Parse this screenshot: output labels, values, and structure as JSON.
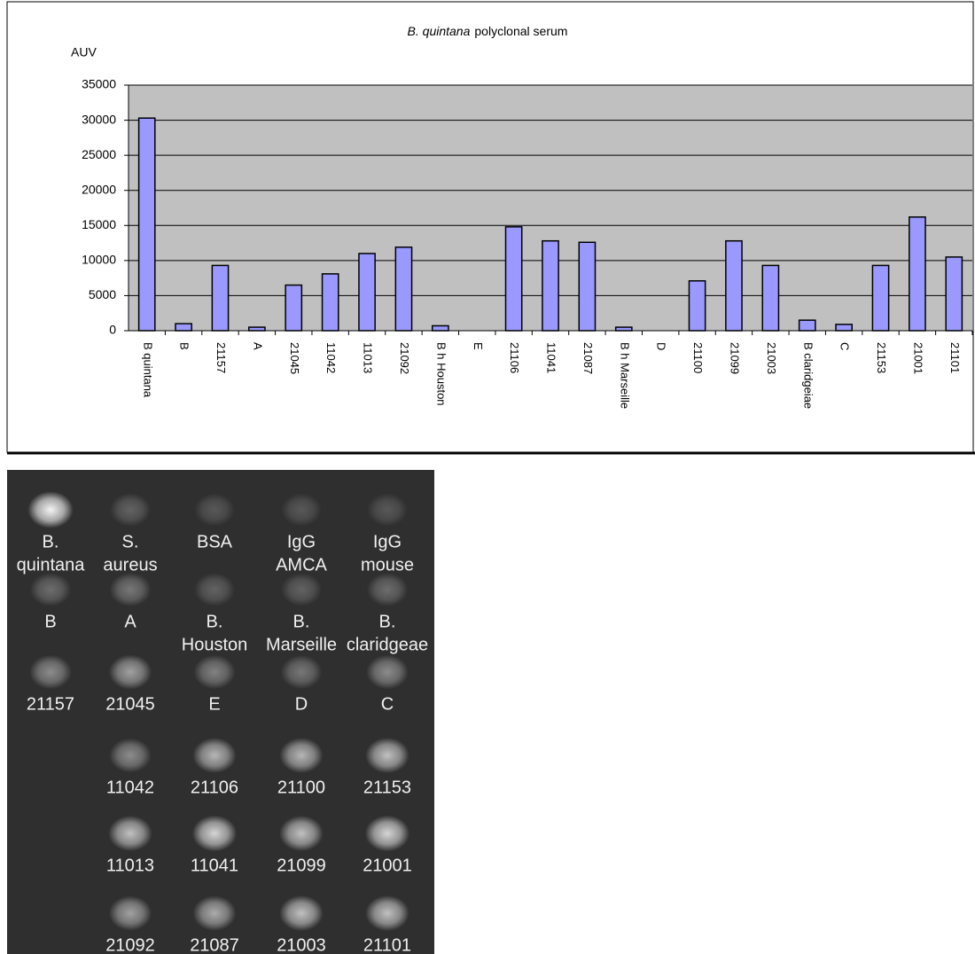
{
  "chart_data": {
    "type": "bar",
    "title_italic": "B. quintana",
    "title_rest": "polyclonal serum",
    "y_label": "AUV",
    "categories": [
      "B quintana",
      "B",
      "21157",
      "A",
      "21045",
      "11042",
      "11013",
      "21092",
      "B h Houston",
      "E",
      "21106",
      "11041",
      "21087",
      "B h Marseille",
      "D",
      "21100",
      "21099",
      "21003",
      "B claridgeiae",
      "C",
      "21153",
      "21001",
      "21101"
    ],
    "values": [
      30300,
      1000,
      9300,
      500,
      6500,
      8100,
      11000,
      11900,
      700,
      0,
      14800,
      12800,
      12600,
      500,
      0,
      7100,
      12800,
      9300,
      1500,
      900,
      9300,
      16200,
      10500
    ],
    "color": "#9999ff",
    "ylim": [
      0,
      35000
    ],
    "yticks": [
      0,
      5000,
      10000,
      15000,
      20000,
      25000,
      30000,
      35000
    ],
    "grid": true
  },
  "blot": {
    "rows": [
      [
        [
          "B.",
          "quintana"
        ],
        [
          "S.",
          "aureus"
        ],
        [
          "BSA"
        ],
        [
          "IgG",
          "AMCA"
        ],
        [
          "IgG",
          "mouse"
        ]
      ],
      [
        [
          "B"
        ],
        [
          "A"
        ],
        [
          "B.",
          "Houston"
        ],
        [
          "B.",
          "Marseille"
        ],
        [
          "B.",
          "claridgeae"
        ]
      ],
      [
        [
          "21157"
        ],
        [
          "21045"
        ],
        [
          "E"
        ],
        [
          "D"
        ],
        [
          "C"
        ]
      ],
      [
        null,
        [
          "11042"
        ],
        [
          "21106"
        ],
        [
          "21100"
        ],
        [
          "21153"
        ]
      ],
      [
        null,
        [
          "11013"
        ],
        [
          "11041"
        ],
        [
          "21099"
        ],
        [
          "21001"
        ]
      ],
      [
        null,
        [
          "21092"
        ],
        [
          "21087"
        ],
        [
          "21003"
        ],
        [
          "21101"
        ]
      ]
    ]
  }
}
